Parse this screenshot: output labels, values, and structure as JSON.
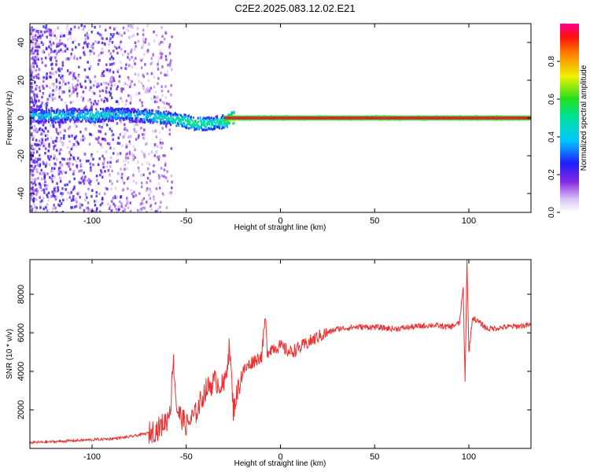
{
  "title": "C2E2.2025.083.12.02.E21",
  "colors": {
    "snr_line": "#ee3030",
    "frame": "#000000",
    "background": "#ffffff"
  },
  "chart_data": [
    {
      "type": "heatmap",
      "xlabel": "Height of straight line (km)",
      "ylabel": "Frequency (Hz)",
      "xlim": [
        -133,
        133
      ],
      "ylim": [
        -50,
        50
      ],
      "xticks": [
        -100,
        -50,
        0,
        50,
        100
      ],
      "yticks": [
        -40,
        -20,
        0,
        20,
        40
      ],
      "grid": false,
      "colorbar": {
        "label": "Normalized spectral amplitude",
        "range": [
          0.0,
          1.0
        ],
        "ticks": [
          0.0,
          0.2,
          0.4,
          0.6,
          0.8
        ],
        "colormap": "rainbow (white-violet-blue-cyan-green-yellow-red-magenta)"
      },
      "features": [
        {
          "x_range": [
            -133,
            -70
          ],
          "description": "broadband scattered noise across all frequencies, amplitude ~0.1-0.3"
        },
        {
          "x_range": [
            -133,
            -30
          ],
          "description": "central echo band near 0 Hz, amplitude ~0.3-0.6, frequency wandering about -3 to +3 Hz"
        },
        {
          "x_range": [
            -30,
            133
          ],
          "description": "narrow strong line at ~0 Hz, amplitude ~0.9-1.0"
        }
      ],
      "ridge": {
        "x": [
          -133,
          -120,
          -110,
          -100,
          -90,
          -80,
          -70,
          -60,
          -50,
          -45,
          -40,
          -35,
          -30,
          -25,
          -20,
          -10,
          0,
          20,
          50,
          100,
          133
        ],
        "freq_hz": [
          1.5,
          1.0,
          1.5,
          1.0,
          2.0,
          1.5,
          1.0,
          0.0,
          -2.0,
          -3.0,
          -3.0,
          -2.5,
          -2.0,
          0.0,
          0.0,
          0.0,
          0.0,
          0.0,
          0.0,
          0.0,
          0.0
        ],
        "amplitude": [
          0.4,
          0.45,
          0.4,
          0.5,
          0.45,
          0.4,
          0.45,
          0.5,
          0.55,
          0.6,
          0.55,
          0.5,
          0.6,
          0.9,
          0.95,
          0.95,
          1.0,
          1.0,
          1.0,
          1.0,
          1.0
        ]
      }
    },
    {
      "type": "line",
      "xlabel": "Height of straight line (km)",
      "ylabel": "SNR (10 * v/v)",
      "xlim": [
        -133,
        133
      ],
      "ylim": [
        0,
        9800
      ],
      "xticks": [
        -100,
        -50,
        0,
        50,
        100
      ],
      "yticks": [
        2000,
        4000,
        6000,
        8000
      ],
      "grid": false,
      "series": [
        {
          "x": [
            -133,
            -120,
            -110,
            -100,
            -90,
            -80,
            -70,
            -65,
            -60,
            -58,
            -57,
            -55,
            -50,
            -45,
            -40,
            -35,
            -30,
            -27,
            -25,
            -22,
            -20,
            -15,
            -10,
            -8,
            -7,
            -5,
            0,
            5,
            10,
            15,
            20,
            25,
            30,
            40,
            50,
            60,
            70,
            80,
            90,
            95,
            97,
            98,
            99,
            100,
            102,
            110,
            120,
            133
          ],
          "y": [
            300,
            350,
            400,
            450,
            500,
            600,
            800,
            1000,
            1500,
            2500,
            4800,
            2000,
            1200,
            1800,
            3000,
            3500,
            3200,
            5300,
            2000,
            3300,
            4000,
            4500,
            4800,
            6800,
            5000,
            5200,
            5300,
            5000,
            5200,
            5500,
            5800,
            6000,
            6200,
            6300,
            6300,
            6200,
            6300,
            6400,
            6300,
            6500,
            8300,
            3400,
            9800,
            5000,
            6800,
            6200,
            6300,
            6400
          ]
        }
      ]
    }
  ]
}
